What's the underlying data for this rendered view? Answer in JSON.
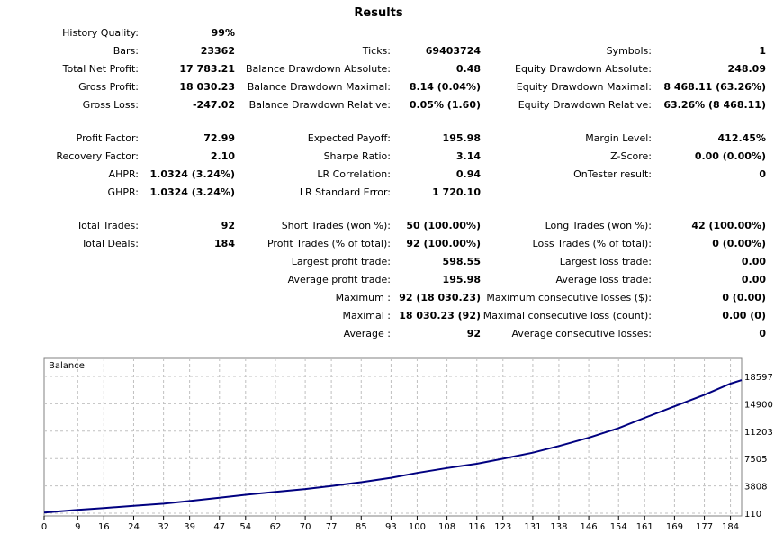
{
  "title": "Results",
  "stats": {
    "history_quality": {
      "label": "History Quality:",
      "value": "99%"
    },
    "bars": {
      "label": "Bars:",
      "value": "23362"
    },
    "total_net_profit": {
      "label": "Total Net Profit:",
      "value": "17 783.21"
    },
    "gross_profit": {
      "label": "Gross Profit:",
      "value": "18 030.23"
    },
    "gross_loss": {
      "label": "Gross Loss:",
      "value": "-247.02"
    },
    "profit_factor": {
      "label": "Profit Factor:",
      "value": "72.99"
    },
    "recovery_factor": {
      "label": "Recovery Factor:",
      "value": "2.10"
    },
    "ahpr": {
      "label": "AHPR:",
      "value": "1.0324 (3.24%)"
    },
    "ghpr": {
      "label": "GHPR:",
      "value": "1.0324 (3.24%)"
    },
    "total_trades": {
      "label": "Total Trades:",
      "value": "92"
    },
    "total_deals": {
      "label": "Total Deals:",
      "value": "184"
    },
    "ticks": {
      "label": "Ticks:",
      "value": "69403724"
    },
    "balance_dd_abs": {
      "label": "Balance Drawdown Absolute:",
      "value": "0.48"
    },
    "balance_dd_max": {
      "label": "Balance Drawdown Maximal:",
      "value": "8.14 (0.04%)"
    },
    "balance_dd_rel": {
      "label": "Balance Drawdown Relative:",
      "value": "0.05% (1.60)"
    },
    "expected_payoff": {
      "label": "Expected Payoff:",
      "value": "195.98"
    },
    "sharpe_ratio": {
      "label": "Sharpe Ratio:",
      "value": "3.14"
    },
    "lr_correlation": {
      "label": "LR Correlation:",
      "value": "0.94"
    },
    "lr_std_error": {
      "label": "LR Standard Error:",
      "value": "1 720.10"
    },
    "short_trades": {
      "label": "Short Trades (won %):",
      "value": "50 (100.00%)"
    },
    "profit_trades": {
      "label": "Profit Trades (% of total):",
      "value": "92 (100.00%)"
    },
    "largest_profit": {
      "label": "Largest profit trade:",
      "value": "598.55"
    },
    "average_profit": {
      "label": "Average profit trade:",
      "value": "195.98"
    },
    "max_consec_wins": {
      "label": "Maximum :",
      "value": "92 (18 030.23)"
    },
    "maximal_consec_profit": {
      "label": "Maximal :",
      "value": "18 030.23 (92)"
    },
    "average_consec_wins": {
      "label": "Average :",
      "value": "92"
    },
    "symbols": {
      "label": "Symbols:",
      "value": "1"
    },
    "equity_dd_abs": {
      "label": "Equity Drawdown Absolute:",
      "value": "248.09"
    },
    "equity_dd_max": {
      "label": "Equity Drawdown Maximal:",
      "value": "8 468.11 (63.26%)"
    },
    "equity_dd_rel": {
      "label": "Equity Drawdown Relative:",
      "value": "63.26% (8 468.11)"
    },
    "margin_level": {
      "label": "Margin Level:",
      "value": "412.45%"
    },
    "z_score": {
      "label": "Z-Score:",
      "value": "0.00 (0.00%)"
    },
    "ontester": {
      "label": "OnTester result:",
      "value": "0"
    },
    "long_trades": {
      "label": "Long Trades (won %):",
      "value": "42 (100.00%)"
    },
    "loss_trades": {
      "label": "Loss Trades (% of total):",
      "value": "0 (0.00%)"
    },
    "largest_loss": {
      "label": "Largest loss trade:",
      "value": "0.00"
    },
    "average_loss": {
      "label": "Average loss trade:",
      "value": "0.00"
    },
    "max_consec_losses": {
      "label": "Maximum consecutive losses ($):",
      "value": "0 (0.00)"
    },
    "maximal_consec_loss": {
      "label": "Maximal consecutive loss (count):",
      "value": "0.00 (0)"
    },
    "average_consec_losses": {
      "label": "Average consecutive losses:",
      "value": "0"
    }
  },
  "colors": {
    "line": "#000080",
    "grid": "#c0c0c0",
    "border": "#808080"
  },
  "chart_data": {
    "type": "line",
    "title": "Balance",
    "x_ticks": [
      "0",
      "9",
      "16",
      "24",
      "32",
      "39",
      "47",
      "54",
      "62",
      "70",
      "77",
      "85",
      "93",
      "100",
      "108",
      "116",
      "123",
      "131",
      "138",
      "146",
      "154",
      "161",
      "169",
      "177",
      "184"
    ],
    "y_ticks": [
      "18597",
      "14900",
      "11203",
      "7505",
      "3808",
      "110"
    ],
    "xlim": [
      0,
      187
    ],
    "ylim": [
      110,
      18597
    ],
    "series": [
      {
        "x": [
          0,
          9,
          16,
          24,
          32,
          39,
          47,
          54,
          62,
          70,
          77,
          85,
          93,
          100,
          108,
          116,
          123,
          131,
          138,
          146,
          154,
          161,
          169,
          177,
          184,
          187
        ],
        "values": [
          200,
          560,
          820,
          1120,
          1400,
          1760,
          2220,
          2600,
          3000,
          3380,
          3800,
          4300,
          4900,
          5560,
          6220,
          6800,
          7480,
          8300,
          9200,
          10320,
          11620,
          13000,
          14560,
          16120,
          17620,
          18100
        ]
      }
    ]
  }
}
